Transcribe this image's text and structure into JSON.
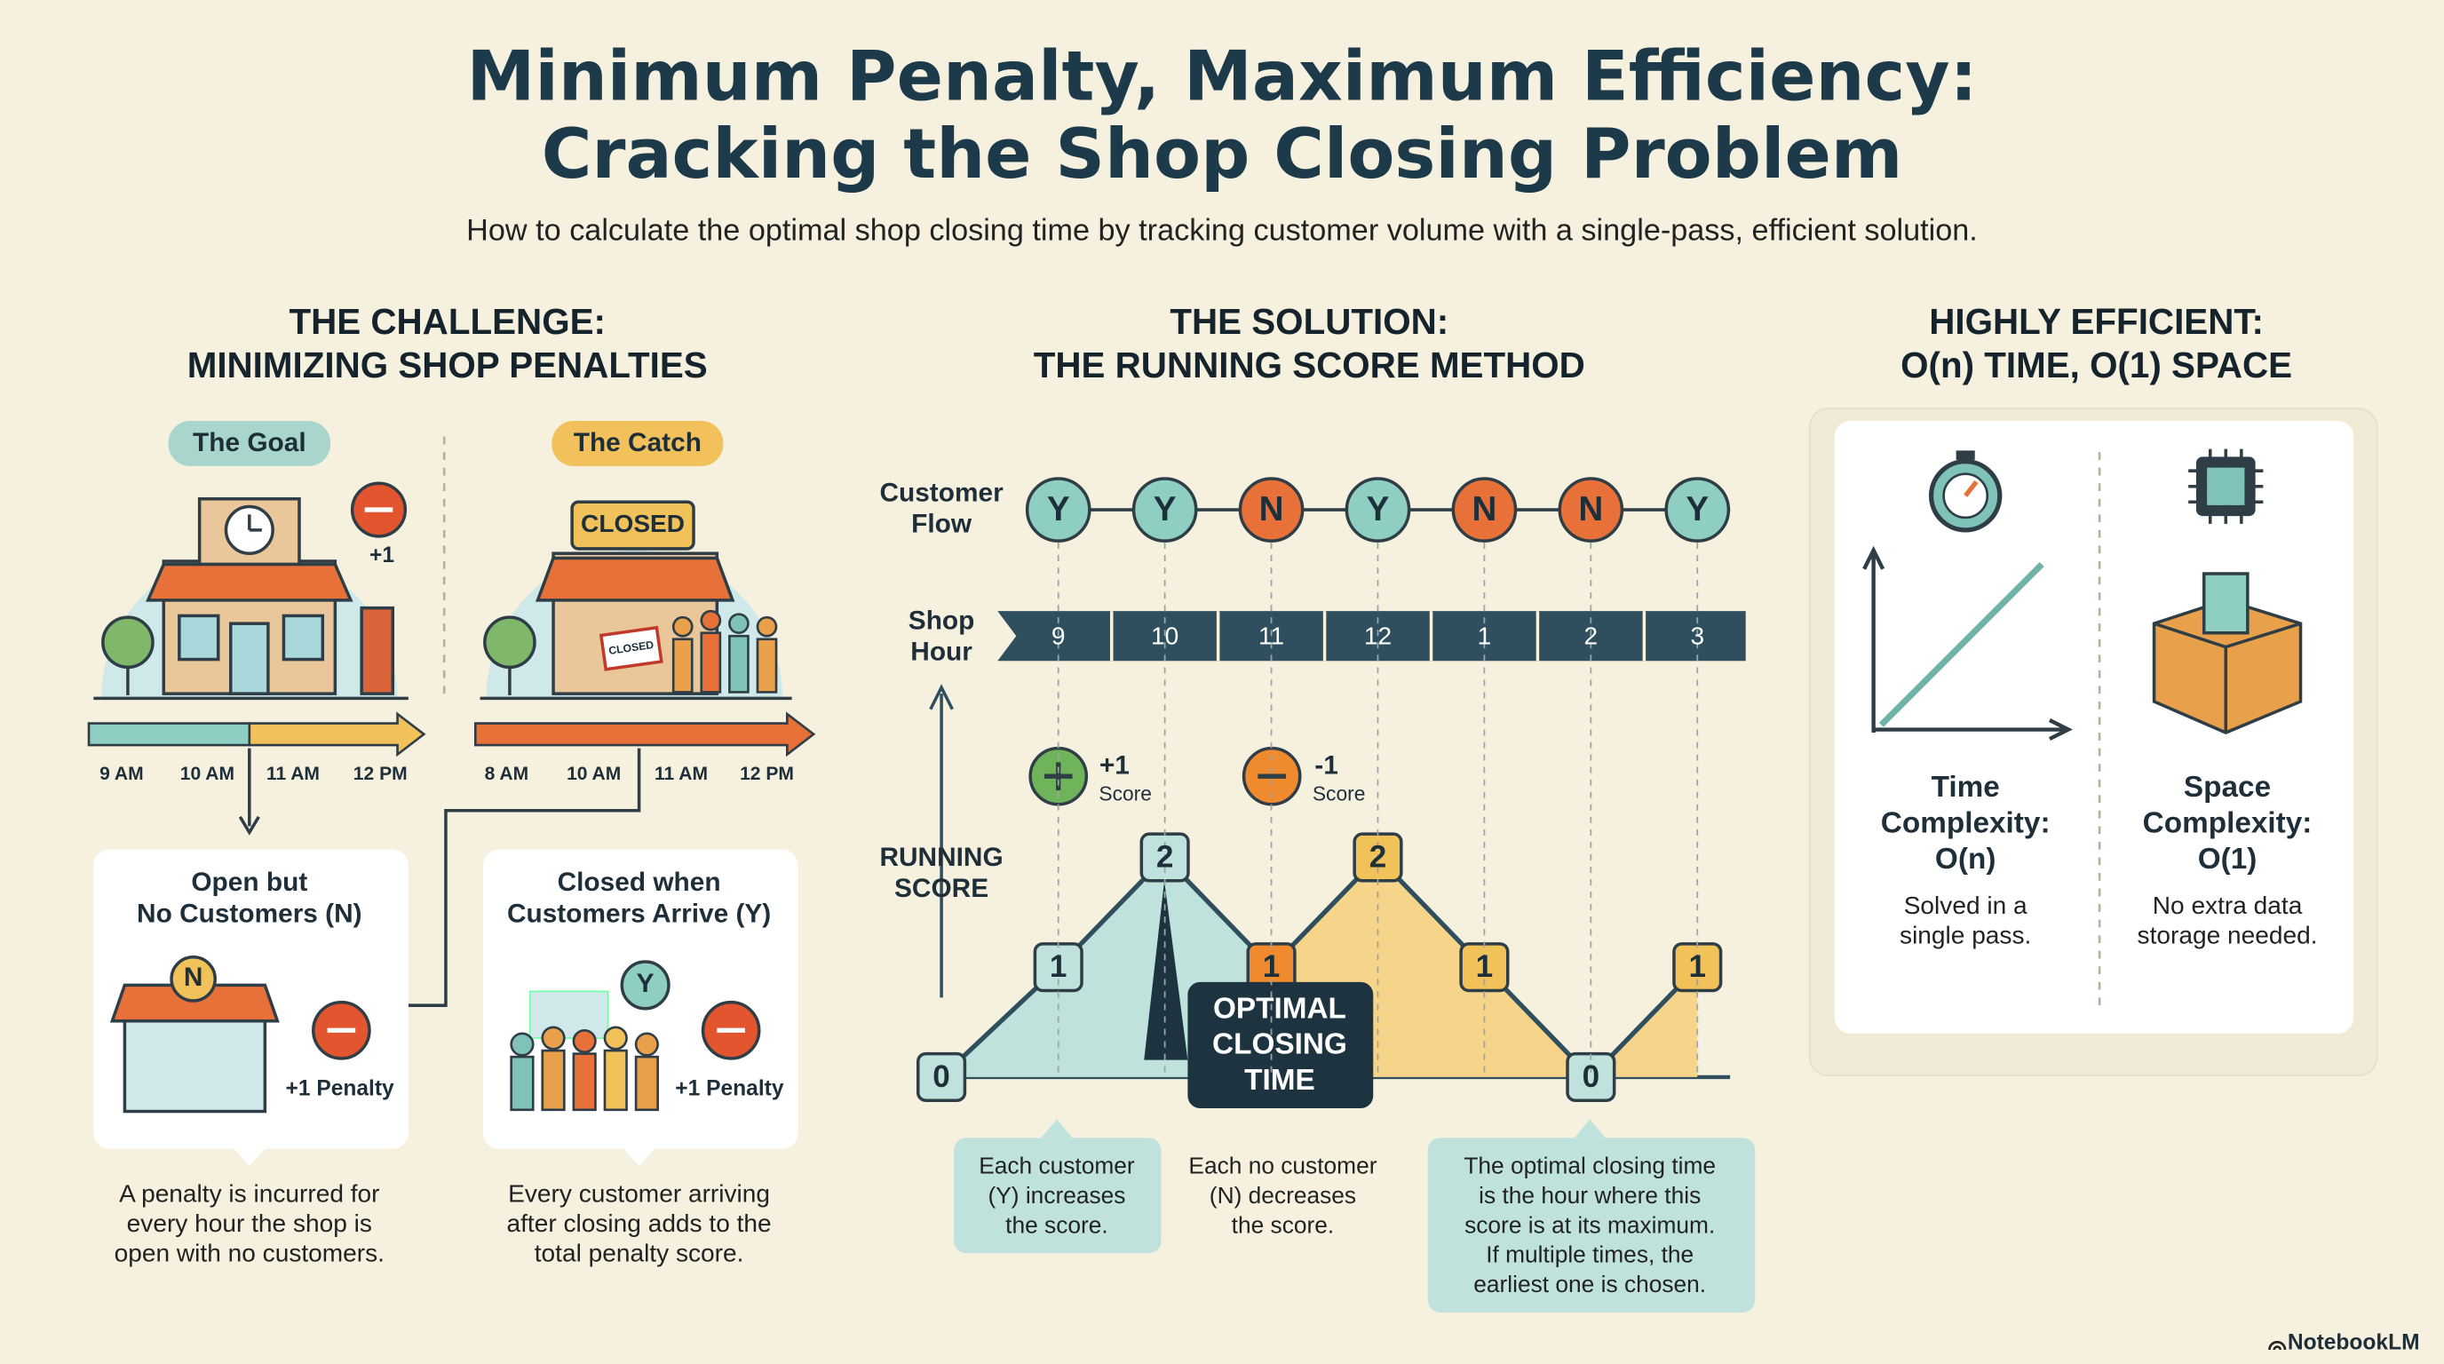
{
  "header": {
    "title": [
      "Minimum Penalty, Maximum Efficiency:",
      "Cracking the Shop Closing Problem"
    ],
    "subtitle": "How to calculate the optimal shop closing time by tracking customer volume with a single-pass, efficient solution."
  },
  "challenge": {
    "heading": [
      "THE CHALLENGE:",
      "MINIMIZING SHOP PENALTIES"
    ],
    "goal": {
      "label": "The Goal",
      "badge": "+1",
      "times": [
        "9 AM",
        "10 AM",
        "11 AM",
        "12 PM"
      ]
    },
    "catch": {
      "label": "The Catch",
      "sign": "CLOSED",
      "small_sign": "CLOSED",
      "times": [
        "8 AM",
        "10 AM",
        "11 AM",
        "12 PM"
      ]
    },
    "cards": [
      {
        "title": [
          "Open but",
          "No Customers (N)"
        ],
        "icon": "N",
        "penalty": "+1 Penalty",
        "caption": [
          "A penalty is incurred for",
          "every hour the shop is",
          "open with no customers."
        ]
      },
      {
        "title": [
          "Closed when",
          "Customers Arrive (Y)"
        ],
        "icon": "Y",
        "penalty": "+1 Penalty",
        "caption": [
          "Every customer arriving",
          "after closing adds to the",
          "total penalty score."
        ]
      }
    ]
  },
  "solution": {
    "heading": [
      "THE SOLUTION:",
      "THE RUNNING SCORE METHOD"
    ],
    "flow_label": [
      "Customer",
      "Flow"
    ],
    "flow": [
      "Y",
      "Y",
      "N",
      "Y",
      "N",
      "N",
      "Y"
    ],
    "hour_label": [
      "Shop",
      "Hour"
    ],
    "hours": [
      9,
      10,
      11,
      12,
      1,
      2,
      3
    ],
    "score_label": [
      "RUNNING",
      "SCORE"
    ],
    "plus": {
      "value": "+1",
      "label": "Score"
    },
    "minus": {
      "value": "-1",
      "label": "Score"
    },
    "scores": [
      0,
      1,
      2,
      1,
      2,
      1,
      0,
      1
    ],
    "callout": [
      "OPTIMAL",
      "CLOSING",
      "TIME"
    ],
    "notes": [
      [
        "Each customer",
        "(Y) increases",
        "the score."
      ],
      [
        "Each no customer",
        "(N) decreases",
        "the score."
      ],
      [
        "The optimal closing time",
        "is the hour where this",
        "score is at its maximum.",
        "If multiple times, the",
        "earliest one is chosen."
      ]
    ]
  },
  "efficiency": {
    "heading": [
      "HIGHLY EFFICIENT:",
      "O(n) TIME, O(1) SPACE"
    ],
    "time": {
      "title": [
        "Time",
        "Complexity:",
        "O(n)"
      ],
      "caption": [
        "Solved in a",
        "single pass."
      ]
    },
    "space": {
      "title": [
        "Space",
        "Complexity:",
        "O(1)"
      ],
      "caption": [
        "No extra data",
        "storage needed."
      ]
    }
  },
  "footer": {
    "brand": "NotebookLM"
  }
}
